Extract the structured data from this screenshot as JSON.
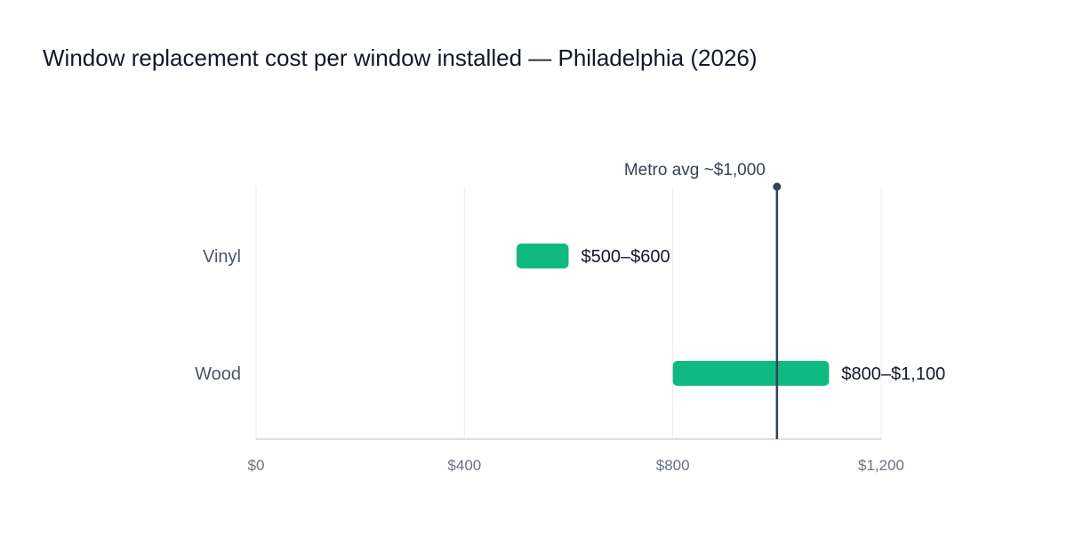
{
  "colors": {
    "bar": "#10b981",
    "reference": "#374151",
    "grid": "#ececec",
    "axis": "#d1d5db"
  },
  "chart_data": {
    "type": "bar",
    "orientation": "horizontal",
    "title": "Window replacement cost per window installed — Philadelphia (2026)",
    "xlabel": "",
    "ylabel": "",
    "xlim": [
      0,
      1200
    ],
    "x_ticks": [
      0,
      400,
      800,
      1200
    ],
    "x_tick_labels": [
      "$0",
      "$400",
      "$800",
      "$1,200"
    ],
    "grid": true,
    "categories": [
      "Vinyl",
      "Wood"
    ],
    "ranges": [
      {
        "category": "Vinyl",
        "low": 500,
        "high": 600,
        "label": "$500–$600"
      },
      {
        "category": "Wood",
        "low": 800,
        "high": 1100,
        "label": "$800–$1,100"
      }
    ],
    "reference_line": {
      "value": 1000,
      "label": "Metro avg ~$1,000"
    }
  }
}
